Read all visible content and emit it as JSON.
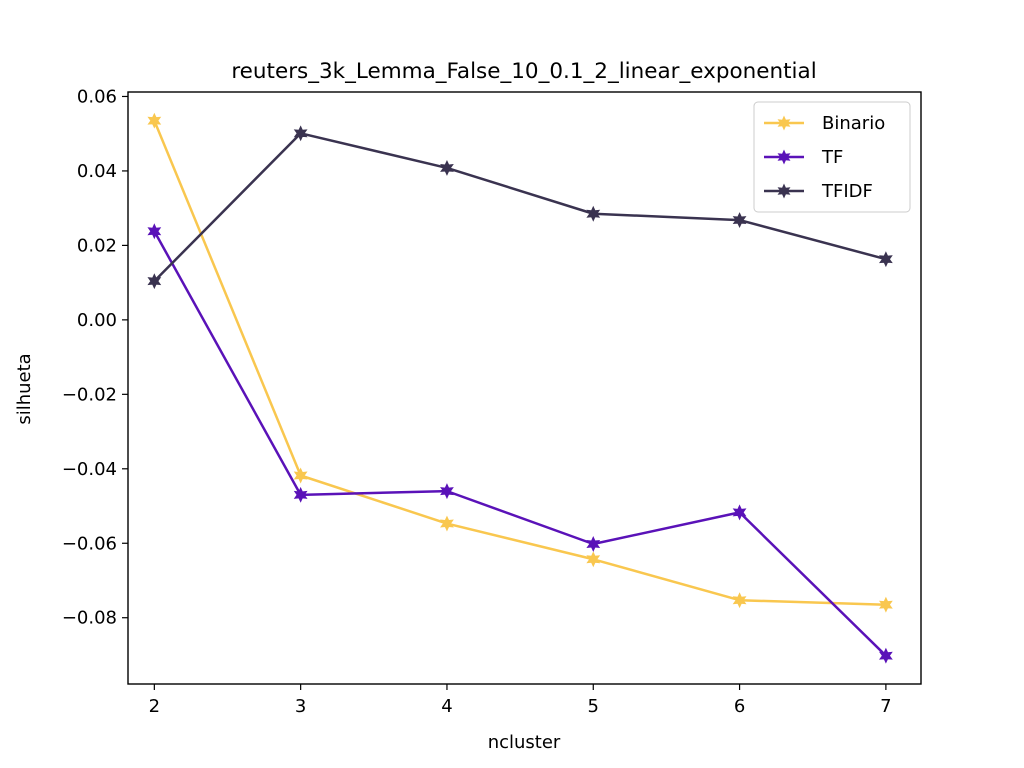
{
  "chart_data": {
    "type": "line",
    "title": "reuters_3k_Lemma_False_10_0.1_2_linear_exponential",
    "xlabel": "ncluster",
    "ylabel": "silhueta",
    "x": [
      2,
      3,
      4,
      5,
      6,
      7
    ],
    "xlim": [
      1.82,
      7.24
    ],
    "ylim": [
      -0.0978,
      0.0612
    ],
    "xticks": [
      2,
      3,
      4,
      5,
      6,
      7
    ],
    "xtick_labels": [
      "2",
      "3",
      "4",
      "5",
      "6",
      "7"
    ],
    "yticks": [
      -0.08,
      -0.06,
      -0.04,
      -0.02,
      0.0,
      0.02,
      0.04,
      0.06
    ],
    "ytick_labels": [
      "−0.08",
      "−0.06",
      "−0.04",
      "−0.02",
      "0.00",
      "0.02",
      "0.04",
      "0.06"
    ],
    "grid": false,
    "legend_position": "top-right",
    "marker": "star",
    "series": [
      {
        "name": "Binario",
        "color": "#f9c74f",
        "values": [
          0.0535,
          -0.0418,
          -0.0547,
          -0.0643,
          -0.0753,
          -0.0765
        ]
      },
      {
        "name": "TF",
        "color": "#5a12b8",
        "values": [
          0.0238,
          -0.047,
          -0.046,
          -0.0602,
          -0.0517,
          -0.0902
        ]
      },
      {
        "name": "TFIDF",
        "color": "#3a3350",
        "values": [
          0.0104,
          0.0501,
          0.0408,
          0.0285,
          0.0268,
          0.0163
        ]
      }
    ]
  }
}
